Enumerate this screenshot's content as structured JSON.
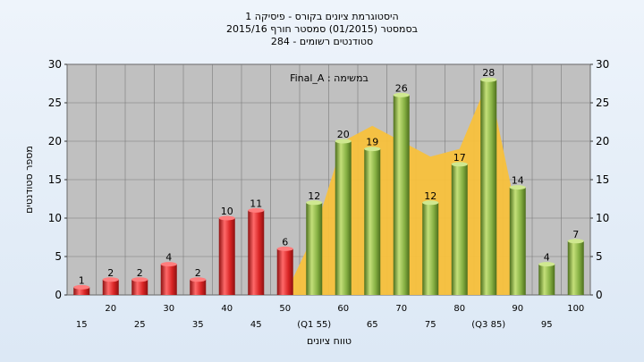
{
  "chart_data": {
    "type": "bar",
    "title_lines": [
      "היסטוגרמת ציונים בקורס - פיסיקה 1",
      "בסמסטר  (01/2015)  סמסטר חורף  2015/16",
      "סטודנטים רשומים - 284"
    ],
    "annotation": "במשימה : Final_A",
    "ylabel": "מספר סטודנטים",
    "xlabel": "טווח ציונים",
    "ylim": [
      0,
      30
    ],
    "yticks": [
      "0",
      "5",
      "10",
      "15",
      "20",
      "25",
      "30"
    ],
    "categories": [
      "15",
      "20",
      "25",
      "30",
      "35",
      "40",
      "45",
      "50",
      "(Q1 55)",
      "60",
      "65",
      "70",
      "75",
      "80",
      "(Q3 85)",
      "90",
      "95",
      "100"
    ],
    "values": [
      1,
      2,
      2,
      4,
      2,
      10,
      11,
      6,
      12,
      20,
      19,
      26,
      12,
      17,
      28,
      14,
      4,
      7
    ],
    "bar_groups": [
      "fail",
      "fail",
      "fail",
      "fail",
      "fail",
      "fail",
      "fail",
      "fail",
      "pass",
      "pass",
      "pass",
      "pass",
      "pass",
      "pass",
      "pass",
      "pass",
      "pass",
      "pass"
    ],
    "colors": {
      "fail": "#e03030",
      "pass": "#8cb84a",
      "area": "#f8c13c",
      "plot_bg": "#c0c0c0"
    },
    "area_series": [
      {
        "category": "50",
        "value": 0
      },
      {
        "category": "(Q1 55)",
        "value": 8
      },
      {
        "category": "60",
        "value": 20
      },
      {
        "category": "65",
        "value": 22
      },
      {
        "category": "70",
        "value": 20
      },
      {
        "category": "75",
        "value": 18
      },
      {
        "category": "80",
        "value": 19
      },
      {
        "category": "(Q3 85)",
        "value": 28
      },
      {
        "category": "90",
        "value": 10
      }
    ],
    "grid": true
  }
}
